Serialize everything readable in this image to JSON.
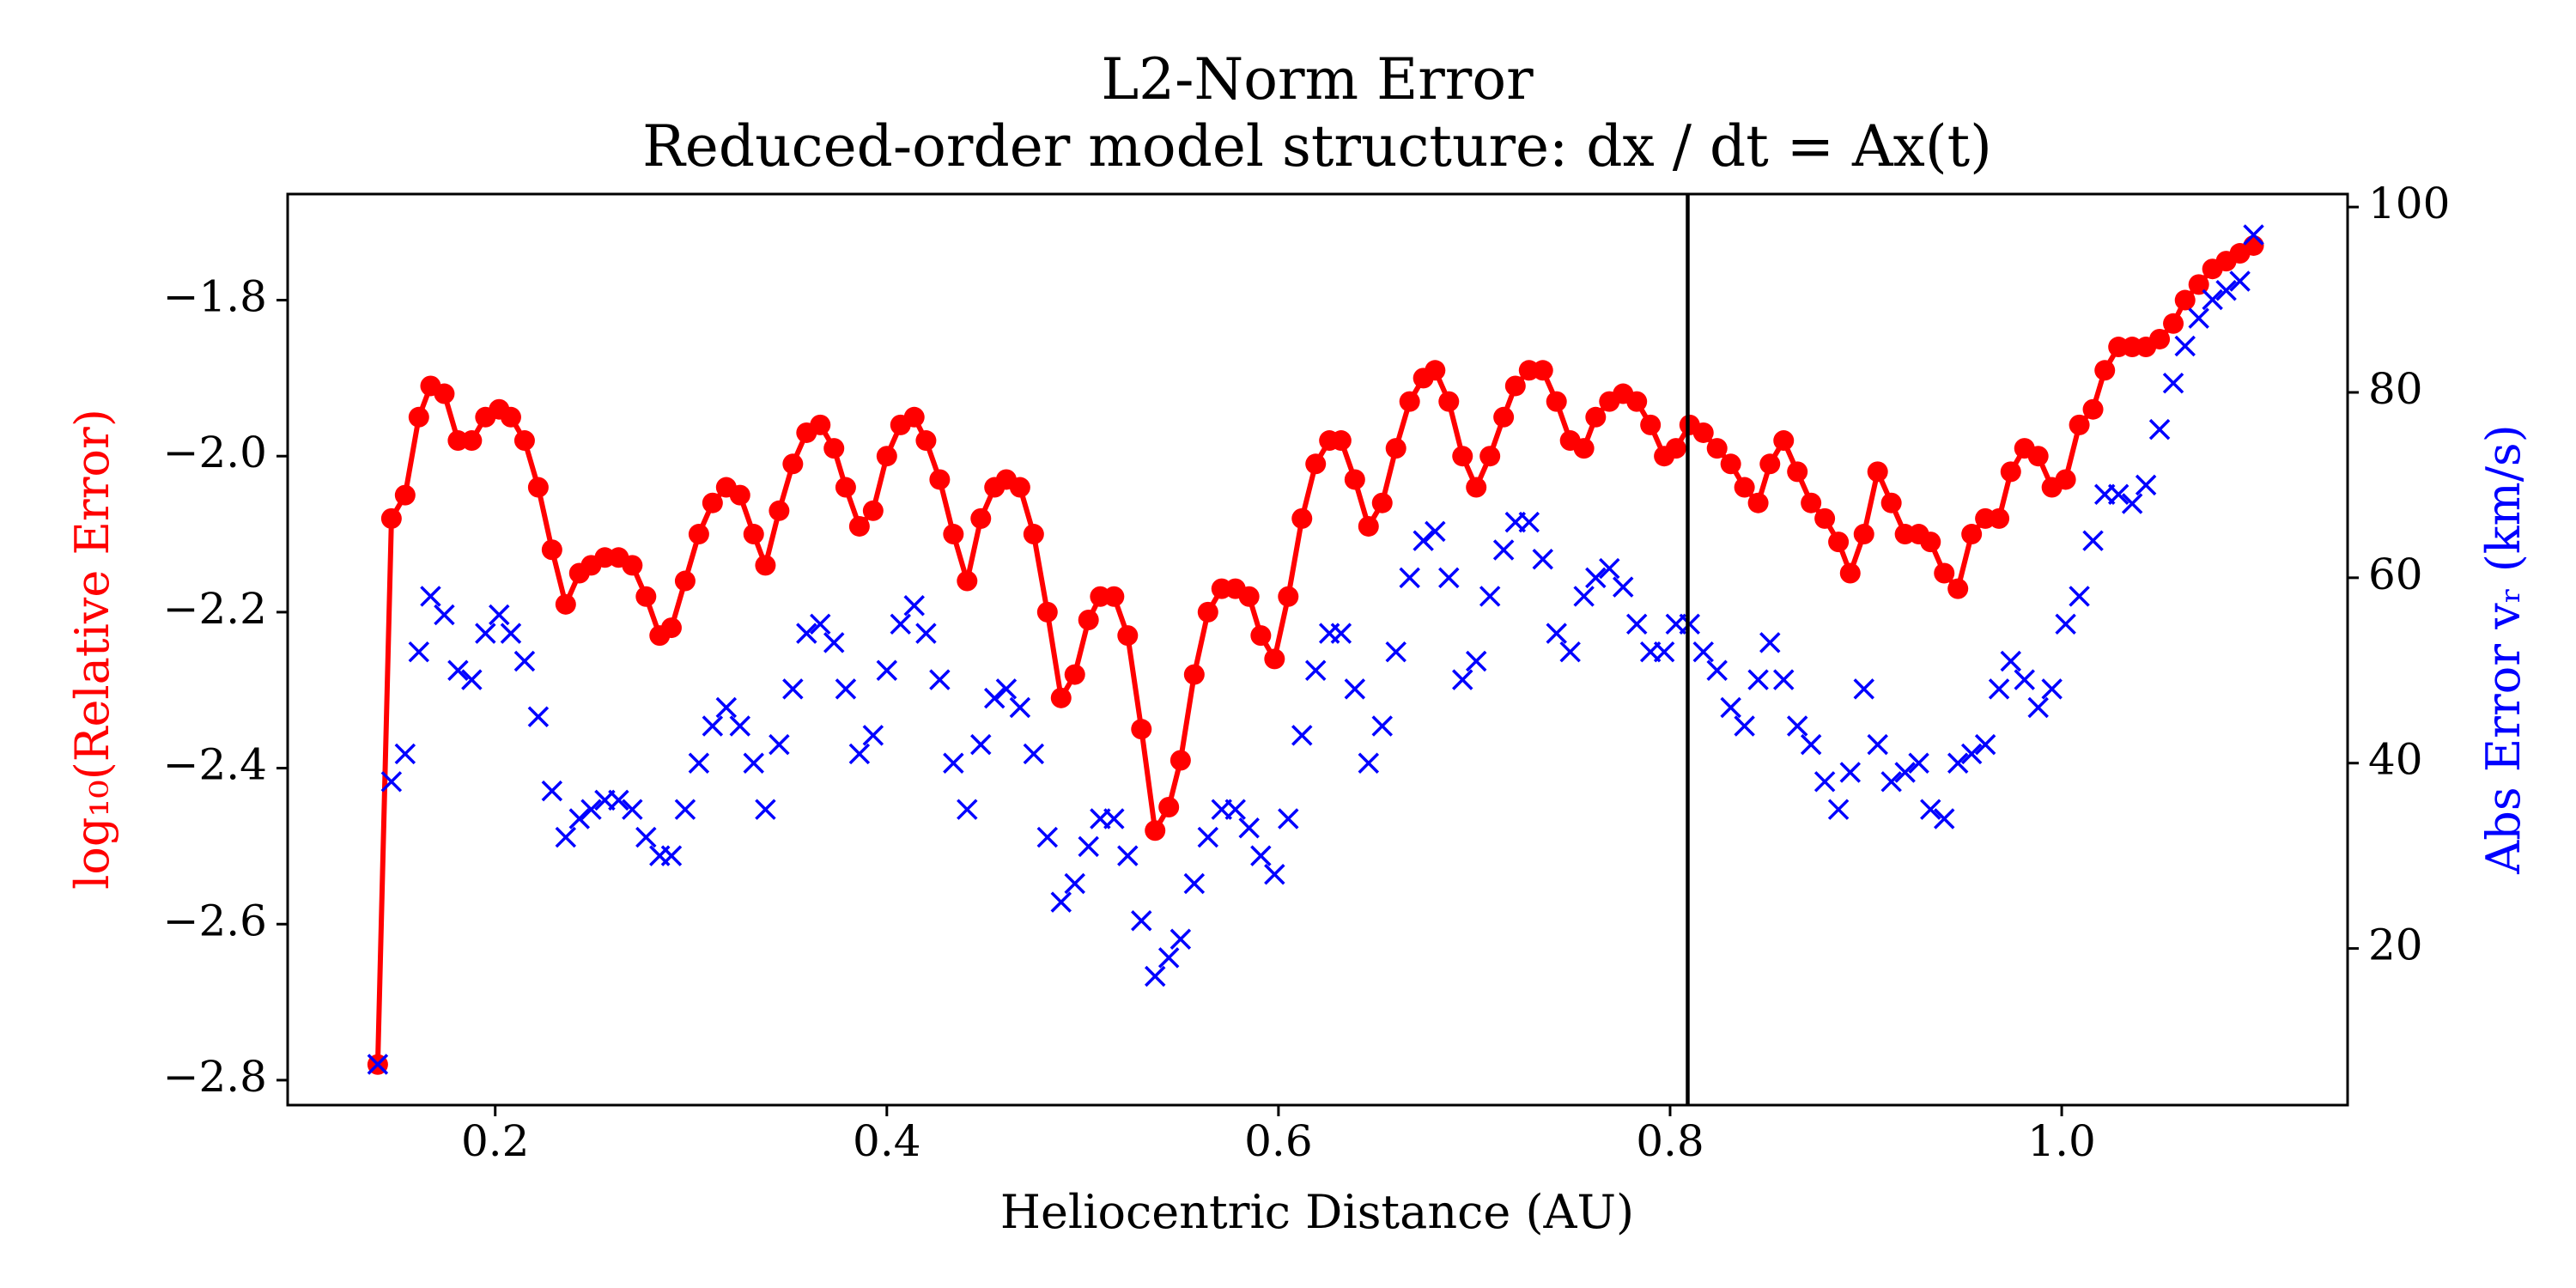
{
  "chart_data": {
    "type": "line",
    "title": "L2-Norm Error",
    "subtitle": "Reduced-order model structure: dx / dt = Ax(t)",
    "xlabel": "Heliocentric Distance (AU)",
    "ylabel": "log₁₀(Relative Error)",
    "y2label": "Abs Error vᵣ (km/s)",
    "ylabel_color": "#ff0000",
    "y2label_color": "#0000ff",
    "xlim": [
      0.094,
      1.146
    ],
    "ylim": [
      -2.832,
      -1.664
    ],
    "y2lim": [
      3.1,
      101.4
    ],
    "xticks": [
      0.2,
      0.4,
      0.6,
      0.8,
      {
        "value": 1.0,
        "label": "1.0"
      }
    ],
    "yticks": [
      {
        "value": -2.8,
        "label": "−2.8"
      },
      {
        "value": -2.6,
        "label": "−2.6"
      },
      {
        "value": -2.4,
        "label": "−2.4"
      },
      {
        "value": -2.2,
        "label": "−2.2"
      },
      {
        "value": -2.0,
        "label": "−2.0"
      },
      {
        "value": -1.8,
        "label": "−1.8"
      }
    ],
    "y2ticks": [
      20,
      40,
      60,
      80,
      100
    ],
    "grid": false,
    "vlines": [
      {
        "x": 0.809,
        "color": "#000000"
      }
    ],
    "x": [
      0.14,
      0.147,
      0.154,
      0.161,
      0.167,
      0.174,
      0.181,
      0.188,
      0.195,
      0.202,
      0.208,
      0.215,
      0.222,
      0.229,
      0.236,
      0.243,
      0.249,
      0.256,
      0.263,
      0.27,
      0.277,
      0.284,
      0.29,
      0.297,
      0.304,
      0.311,
      0.318,
      0.325,
      0.332,
      0.338,
      0.345,
      0.352,
      0.359,
      0.366,
      0.373,
      0.379,
      0.386,
      0.393,
      0.4,
      0.407,
      0.414,
      0.42,
      0.427,
      0.434,
      0.441,
      0.448,
      0.455,
      0.461,
      0.468,
      0.475,
      0.482,
      0.489,
      0.496,
      0.503,
      0.509,
      0.516,
      0.523,
      0.53,
      0.537,
      0.544,
      0.55,
      0.557,
      0.564,
      0.571,
      0.578,
      0.585,
      0.591,
      0.598,
      0.605,
      0.612,
      0.619,
      0.626,
      0.632,
      0.639,
      0.646,
      0.653,
      0.66,
      0.667,
      0.674,
      0.68,
      0.687,
      0.694,
      0.701,
      0.708,
      0.715,
      0.721,
      0.728,
      0.735,
      0.742,
      0.749,
      0.756,
      0.762,
      0.769,
      0.776,
      0.783,
      0.79,
      0.797,
      0.803,
      0.81,
      0.817,
      0.824,
      0.831,
      0.838,
      0.845,
      0.851,
      0.858,
      0.865,
      0.872,
      0.879,
      0.886,
      0.892,
      0.899,
      0.906,
      0.913,
      0.92,
      0.927,
      0.933,
      0.94,
      0.947,
      0.954,
      0.961,
      0.968,
      0.974,
      0.981,
      0.988,
      0.995,
      1.002,
      1.009,
      1.016,
      1.022,
      1.029,
      1.036,
      1.043,
      1.05,
      1.057,
      1.063,
      1.07,
      1.077,
      1.084,
      1.091,
      1.098
    ],
    "series": [
      {
        "color": "#ff0000",
        "marker": "o",
        "line": true,
        "axis": "y",
        "values": [
          -2.78,
          -2.08,
          -2.05,
          -1.95,
          -1.91,
          -1.92,
          -1.98,
          -1.98,
          -1.95,
          -1.94,
          -1.95,
          -1.98,
          -2.04,
          -2.12,
          -2.19,
          -2.15,
          -2.14,
          -2.13,
          -2.13,
          -2.14,
          -2.18,
          -2.23,
          -2.22,
          -2.16,
          -2.1,
          -2.06,
          -2.04,
          -2.05,
          -2.1,
          -2.14,
          -2.07,
          -2.01,
          -1.97,
          -1.96,
          -1.99,
          -2.04,
          -2.09,
          -2.07,
          -2.0,
          -1.96,
          -1.95,
          -1.98,
          -2.03,
          -2.1,
          -2.16,
          -2.08,
          -2.04,
          -2.03,
          -2.04,
          -2.1,
          -2.2,
          -2.31,
          -2.28,
          -2.21,
          -2.18,
          -2.18,
          -2.23,
          -2.35,
          -2.48,
          -2.45,
          -2.39,
          -2.28,
          -2.2,
          -2.17,
          -2.17,
          -2.18,
          -2.23,
          -2.26,
          -2.18,
          -2.08,
          -2.01,
          -1.98,
          -1.98,
          -2.03,
          -2.09,
          -2.06,
          -1.99,
          -1.93,
          -1.9,
          -1.89,
          -1.93,
          -2.0,
          -2.04,
          -2.0,
          -1.95,
          -1.91,
          -1.89,
          -1.89,
          -1.93,
          -1.98,
          -1.99,
          -1.95,
          -1.93,
          -1.92,
          -1.93,
          -1.96,
          -2.0,
          -1.99,
          -1.96,
          -1.97,
          -1.99,
          -2.01,
          -2.04,
          -2.06,
          -2.01,
          -1.98,
          -2.02,
          -2.06,
          -2.08,
          -2.11,
          -2.15,
          -2.1,
          -2.02,
          -2.06,
          -2.1,
          -2.1,
          -2.11,
          -2.15,
          -2.17,
          -2.1,
          -2.08,
          -2.08,
          -2.02,
          -1.99,
          -2.0,
          -2.04,
          -2.03,
          -1.96,
          -1.94,
          -1.89,
          -1.86,
          -1.86,
          -1.86,
          -1.85,
          -1.83,
          -1.8,
          -1.78,
          -1.76,
          -1.75,
          -1.74,
          -1.73
        ]
      },
      {
        "color": "#0000ff",
        "marker": "x",
        "line": false,
        "axis": "y2",
        "values": [
          7.5,
          38,
          41,
          52,
          58,
          56,
          50,
          49,
          54,
          56,
          54,
          51,
          45,
          37,
          32,
          34,
          35,
          36,
          36,
          35,
          32,
          30,
          30,
          35,
          40,
          44,
          46,
          44,
          40,
          35,
          42,
          48,
          54,
          55,
          53,
          48,
          41,
          43,
          50,
          55,
          57,
          54,
          49,
          40,
          35,
          42,
          47,
          48,
          46,
          41,
          32,
          25,
          27,
          31,
          34,
          34,
          30,
          23,
          17,
          19,
          21,
          27,
          32,
          35,
          35,
          33,
          30,
          28,
          34,
          43,
          50,
          54,
          54,
          48,
          40,
          44,
          52,
          60,
          64,
          65,
          60,
          49,
          51,
          58,
          63,
          66,
          66,
          62,
          54,
          52,
          58,
          60,
          61,
          59,
          55,
          52,
          52,
          55,
          55,
          52,
          50,
          46,
          44,
          49,
          53,
          49,
          44,
          42,
          38,
          35,
          39,
          48,
          42,
          38,
          39,
          40,
          35,
          34,
          40,
          41,
          42,
          48,
          51,
          49,
          46,
          48,
          55,
          58,
          64,
          69,
          69,
          68,
          70,
          76,
          81,
          85,
          88,
          90,
          91,
          92,
          97
        ]
      }
    ]
  }
}
